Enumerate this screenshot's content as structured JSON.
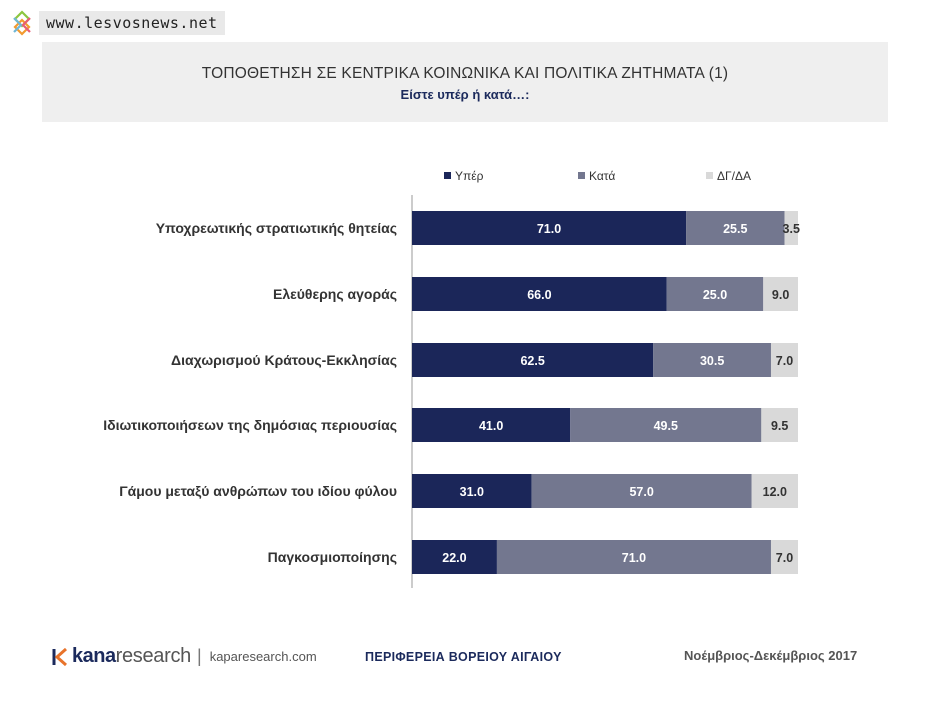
{
  "watermark": {
    "text": "www.lesvosnews.net"
  },
  "header": {
    "title": "ΤΟΠΟΘΕΤΗΣΗ ΣΕ ΚΕΝΤΡΙΚΑ ΚΟΙΝΩΝΙΚΑ ΚΑΙ ΠΟΛΙΤΙΚΑ ΖΗΤΗΜΑΤΑ (1)",
    "subtitle": "Είστε υπέρ ή κατά…:"
  },
  "chart_data": {
    "type": "bar",
    "orientation": "horizontal",
    "stacked": true,
    "categories": [
      "Υποχρεωτικής στρατιωτικής θητείας",
      "Ελεύθερης αγοράς",
      "Διαχωρισμού Κράτους-Εκκλησίας",
      "Ιδιωτικοποιήσεων της δημόσιας περιουσίας",
      "Γάμου μεταξύ ανθρώπων του ιδίου φύλου",
      "Παγκοσμιοποίησης"
    ],
    "series": [
      {
        "name": "Υπέρ",
        "color": "#1b2659",
        "label_color": "#ffffff",
        "values": [
          71.0,
          66.0,
          62.5,
          41.0,
          31.0,
          22.0
        ]
      },
      {
        "name": "Κατά",
        "color": "#73778f",
        "label_color": "#ffffff",
        "values": [
          25.5,
          25.0,
          30.5,
          49.5,
          57.0,
          71.0
        ]
      },
      {
        "name": "ΔΓ/ΔΑ",
        "color": "#d9d9d9",
        "label_color": "#333333",
        "values": [
          3.5,
          9.0,
          7.0,
          9.5,
          12.0,
          7.0
        ]
      }
    ],
    "xlim": [
      0,
      100
    ],
    "legend_position": "top",
    "grid": false
  },
  "footer": {
    "brand_kana": "kana",
    "brand_research": "research",
    "separator": "|",
    "url": "kaparesearch.com",
    "region": "ΠΕΡΙΦΕΡΕΙΑ ΒΟΡΕΙΟΥ ΑΙΓΑΙΟΥ",
    "date": "Νοέμβριος-Δεκέμβριος 2017"
  }
}
